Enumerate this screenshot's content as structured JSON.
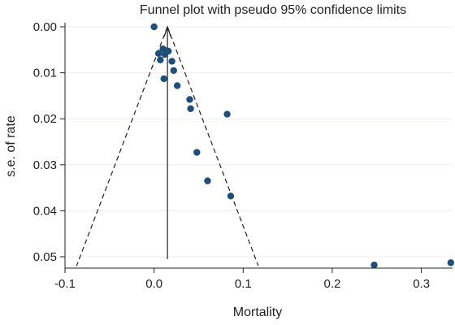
{
  "chart_data": {
    "type": "scatter",
    "title": "Funnel plot with pseudo 95% confidence limits",
    "xlabel": "Mortality",
    "ylabel": "s.e. of rate",
    "xlim": [
      -0.1,
      0.335
    ],
    "ylim": [
      0.0,
      0.052
    ],
    "y_inverted": true,
    "xticks": [
      -0.1,
      0.0,
      0.1,
      0.2,
      0.3
    ],
    "xtick_labels": [
      "-0.1",
      "0.0",
      "0.1",
      "0.2",
      "0.3"
    ],
    "yticks": [
      0.0,
      0.01,
      0.02,
      0.03,
      0.04,
      0.05
    ],
    "ytick_labels": [
      "0.00",
      "0.01",
      "0.02",
      "0.03",
      "0.04",
      "0.05"
    ],
    "grid": true,
    "pooled_estimate": 0.015,
    "funnel": {
      "apex": [
        0.015,
        0.0
      ],
      "left_base": [
        -0.087,
        0.052
      ],
      "right_base": [
        0.117,
        0.052
      ]
    },
    "marker_color": "#1f4e79",
    "points": [
      {
        "x": 0.0,
        "y": 0.0
      },
      {
        "x": 0.01,
        "y": 0.0048
      },
      {
        "x": 0.013,
        "y": 0.0052
      },
      {
        "x": 0.016,
        "y": 0.0053
      },
      {
        "x": 0.005,
        "y": 0.0058
      },
      {
        "x": 0.012,
        "y": 0.006
      },
      {
        "x": 0.007,
        "y": 0.0072
      },
      {
        "x": 0.02,
        "y": 0.0075
      },
      {
        "x": 0.022,
        "y": 0.0095
      },
      {
        "x": 0.011,
        "y": 0.0113
      },
      {
        "x": 0.026,
        "y": 0.0128
      },
      {
        "x": 0.04,
        "y": 0.0158
      },
      {
        "x": 0.041,
        "y": 0.0178
      },
      {
        "x": 0.082,
        "y": 0.019
      },
      {
        "x": 0.048,
        "y": 0.0273
      },
      {
        "x": 0.06,
        "y": 0.0335
      },
      {
        "x": 0.086,
        "y": 0.0368
      },
      {
        "x": 0.247,
        "y": 0.0518
      },
      {
        "x": 0.333,
        "y": 0.0513
      }
    ]
  }
}
